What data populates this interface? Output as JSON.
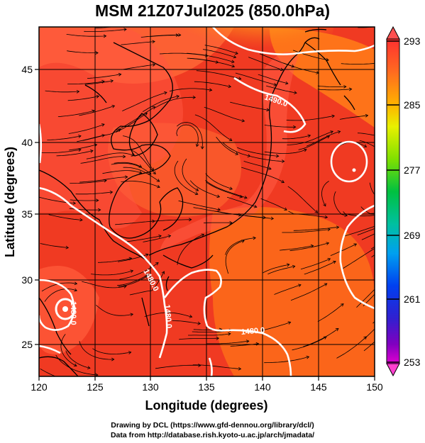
{
  "title": "MSM 21Z07Jul2025 (850.0hPa)",
  "map": {
    "x_axis": {
      "label": "Longitude (degrees)",
      "range": [
        120,
        150
      ],
      "ticks": [
        "120",
        "125",
        "130",
        "135",
        "140",
        "145",
        "150"
      ]
    },
    "y_axis": {
      "label": "Latitude  (degrees)",
      "range": [
        22.4,
        47.6
      ],
      "ticks": [
        "25",
        "30",
        "35",
        "40",
        "45"
      ]
    },
    "grid": true,
    "field": "temperature shading with wind streamlines and geopotential height contours",
    "contour_labels": [
      "1490.0",
      "1480.0",
      "1480.0",
      "1480.0",
      "1480.0"
    ],
    "colors": {
      "warm_base": "#f03a22",
      "warm_light": "#ff6a4a",
      "warm_orange": "#ff7a18",
      "cool_yellow": "#e8f020",
      "cool_green": "#9ad820",
      "contour": "#ffffff",
      "land_outline": "#000000",
      "streamline": "#000000"
    }
  },
  "colorbar": {
    "labels": [
      "293",
      "285",
      "277",
      "269",
      "261",
      "253"
    ],
    "colors_top_to_bottom": [
      "#ff3030",
      "#ff6a20",
      "#ffb000",
      "#e8f000",
      "#80e000",
      "#00c040",
      "#00c0a0",
      "#00a0f0",
      "#0040f0",
      "#3020d0",
      "#8000c0",
      "#e000d0"
    ]
  },
  "credits": {
    "line1": "Drawing by DCL (https://www.gfd-dennou.org/library/dcl/)",
    "line2": "Data from http://database.rish.kyoto-u.ac.jp/arch/jmadata/"
  }
}
